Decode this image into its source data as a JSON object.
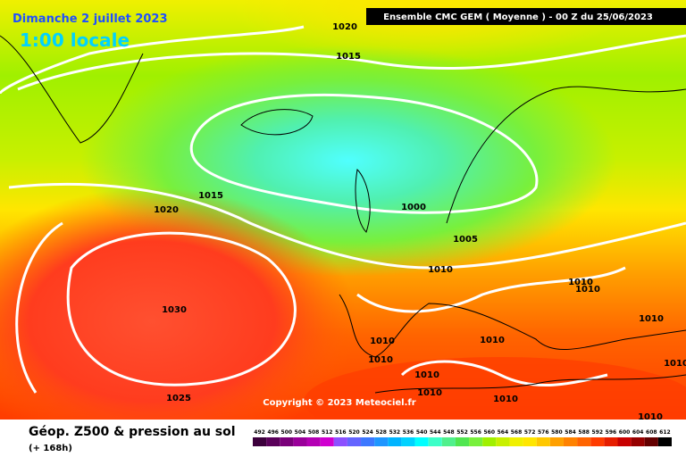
{
  "header": {
    "date": "Dimanche 2 juillet 2023",
    "time": "1:00 locale",
    "model": "Ensemble CMC GEM  ( Moyenne )  -  00 Z du 25/06/2023"
  },
  "isobar_labels": [
    "1020",
    "1015",
    "1015",
    "1020",
    "1000",
    "1005",
    "1010",
    "1010",
    "1010",
    "1030",
    "1010",
    "1010",
    "1010",
    "1010",
    "1010",
    "1010",
    "1010",
    "1025",
    "1010",
    "1010"
  ],
  "copyright": "Copyright © 2023 Meteociel.fr",
  "footer": {
    "title": "Géop. Z500 & pression au sol",
    "lead": "(+ 168h)"
  },
  "colorbar": {
    "labels": [
      492,
      496,
      500,
      504,
      508,
      512,
      516,
      520,
      524,
      528,
      532,
      536,
      540,
      544,
      548,
      552,
      556,
      560,
      564,
      568,
      572,
      576,
      580,
      584,
      588,
      592,
      596,
      600,
      604,
      608,
      612
    ],
    "colors": [
      "#3c003c",
      "#5a005a",
      "#7a007a",
      "#9a009a",
      "#b400b4",
      "#d000d0",
      "#8c50ff",
      "#6464ff",
      "#3c78ff",
      "#1e96ff",
      "#00b4ff",
      "#00d2ff",
      "#00ffff",
      "#3cffc8",
      "#50f08c",
      "#50e650",
      "#78f03c",
      "#a0f000",
      "#c8f000",
      "#f0f000",
      "#ffe600",
      "#ffc800",
      "#ffa000",
      "#ff8200",
      "#ff6400",
      "#ff3c00",
      "#e61e00",
      "#c80000",
      "#960000",
      "#640000",
      "#000000"
    ]
  }
}
